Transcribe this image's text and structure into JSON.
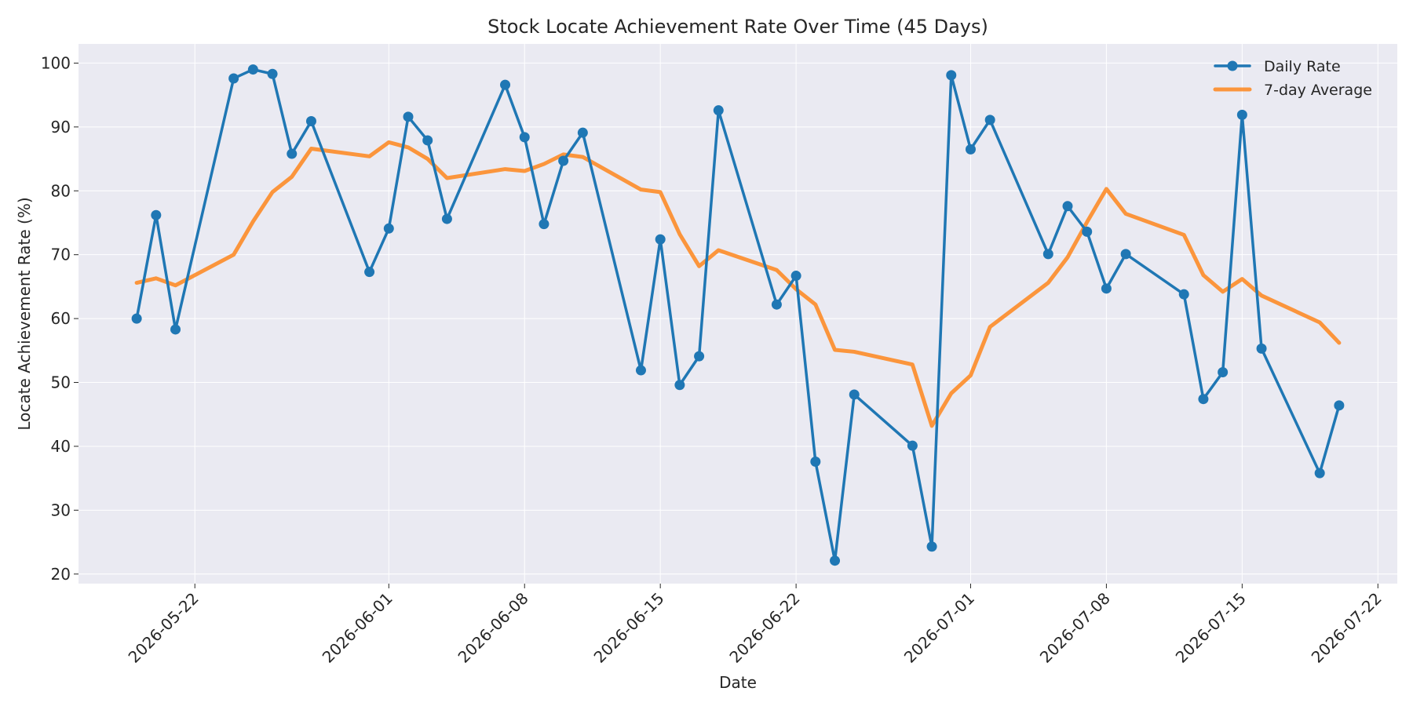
{
  "chart_data": {
    "type": "line",
    "title": "Stock Locate Achievement Rate Over Time (45 Days)",
    "xlabel": "Date",
    "ylabel": "Locate Achievement Rate (%)",
    "xlim": [
      "2026-05-16",
      "2026-07-23"
    ],
    "ylim": [
      18.5,
      103
    ],
    "x_ticks": [
      "2026-05-22",
      "2026-06-01",
      "2026-06-08",
      "2026-06-15",
      "2026-06-22",
      "2026-07-01",
      "2026-07-08",
      "2026-07-15",
      "2026-07-22"
    ],
    "y_ticks": [
      20,
      30,
      40,
      50,
      60,
      70,
      80,
      90,
      100
    ],
    "grid": true,
    "legend_position": "top-right",
    "series": [
      {
        "name": "Daily Rate",
        "color": "#1f77b4",
        "marker": "circle",
        "x": [
          "2026-05-19",
          "2026-05-20",
          "2026-05-21",
          "2026-05-24",
          "2026-05-25",
          "2026-05-26",
          "2026-05-27",
          "2026-05-28",
          "2026-05-31",
          "2026-06-01",
          "2026-06-02",
          "2026-06-03",
          "2026-06-04",
          "2026-06-07",
          "2026-06-08",
          "2026-06-09",
          "2026-06-10",
          "2026-06-11",
          "2026-06-14",
          "2026-06-15",
          "2026-06-16",
          "2026-06-17",
          "2026-06-18",
          "2026-06-21",
          "2026-06-22",
          "2026-06-23",
          "2026-06-24",
          "2026-06-25",
          "2026-06-28",
          "2026-06-29",
          "2026-06-30",
          "2026-07-01",
          "2026-07-02",
          "2026-07-05",
          "2026-07-06",
          "2026-07-07",
          "2026-07-08",
          "2026-07-09",
          "2026-07-12",
          "2026-07-13",
          "2026-07-14",
          "2026-07-15",
          "2026-07-16",
          "2026-07-19",
          "2026-07-20"
        ],
        "values": [
          60.0,
          76.2,
          58.3,
          97.6,
          99.0,
          98.3,
          85.8,
          90.9,
          67.3,
          74.1,
          91.6,
          87.9,
          75.6,
          96.6,
          88.4,
          74.8,
          84.7,
          89.1,
          51.9,
          72.4,
          49.6,
          54.1,
          92.6,
          62.2,
          66.7,
          37.6,
          22.1,
          48.1,
          40.1,
          24.3,
          98.1,
          86.5,
          91.1,
          70.1,
          77.6,
          73.6,
          64.7,
          70.1,
          63.8,
          47.4,
          51.6,
          91.9,
          55.3,
          35.8,
          46.4
        ]
      },
      {
        "name": "7-day Average",
        "color": "#ff7f0e",
        "marker": "none",
        "x": [
          "2026-05-19",
          "2026-05-20",
          "2026-05-21",
          "2026-05-24",
          "2026-05-25",
          "2026-05-26",
          "2026-05-27",
          "2026-05-28",
          "2026-05-31",
          "2026-06-01",
          "2026-06-02",
          "2026-06-03",
          "2026-06-04",
          "2026-06-07",
          "2026-06-08",
          "2026-06-09",
          "2026-06-10",
          "2026-06-11",
          "2026-06-14",
          "2026-06-15",
          "2026-06-16",
          "2026-06-17",
          "2026-06-18",
          "2026-06-21",
          "2026-06-22",
          "2026-06-23",
          "2026-06-24",
          "2026-06-25",
          "2026-06-28",
          "2026-06-29",
          "2026-06-30",
          "2026-07-01",
          "2026-07-02",
          "2026-07-05",
          "2026-07-06",
          "2026-07-07",
          "2026-07-08",
          "2026-07-09",
          "2026-07-12",
          "2026-07-13",
          "2026-07-14",
          "2026-07-15",
          "2026-07-16",
          "2026-07-19",
          "2026-07-20"
        ],
        "values": [
          65.6,
          66.3,
          65.2,
          70.0,
          75.2,
          79.8,
          82.2,
          86.6,
          85.4,
          87.6,
          86.8,
          85.0,
          82.0,
          83.4,
          83.1,
          84.2,
          85.7,
          85.3,
          80.2,
          79.8,
          73.2,
          68.2,
          70.7,
          67.6,
          64.6,
          62.2,
          55.1,
          54.8,
          52.8,
          43.2,
          48.3,
          51.1,
          58.7,
          65.6,
          69.6,
          75.1,
          80.3,
          76.4,
          73.1,
          66.8,
          64.2,
          66.2,
          63.6,
          59.4,
          56.2
        ]
      }
    ]
  }
}
